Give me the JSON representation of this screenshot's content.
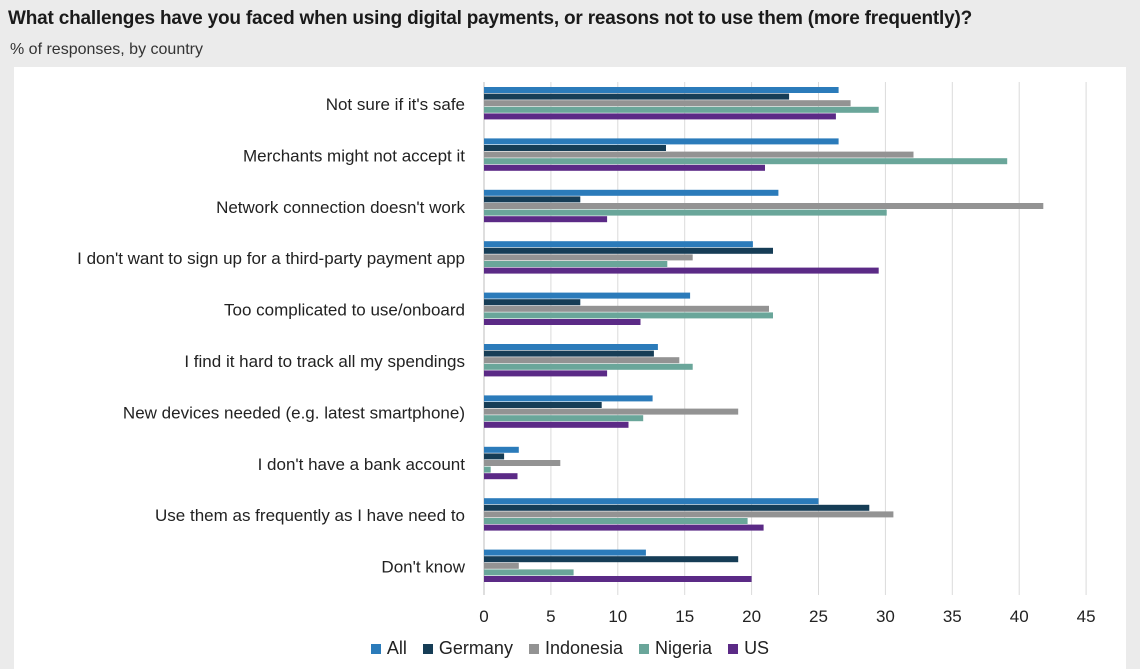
{
  "header": {
    "title": "What challenges have you faced when using digital payments, or reasons not to use them (more frequently)?",
    "subtitle": "% of responses, by country"
  },
  "chart_data": {
    "type": "bar",
    "orientation": "horizontal",
    "title": "What challenges have you faced when using digital payments, or reasons not to use them (more frequently)?",
    "subtitle": "% of responses, by country",
    "xlabel": "",
    "ylabel": "",
    "xlim": [
      0,
      45
    ],
    "xticks": [
      0,
      5,
      10,
      15,
      20,
      25,
      30,
      35,
      40,
      45
    ],
    "grid": "vertical",
    "legend_position": "bottom",
    "categories": [
      "Not sure if it's safe",
      "Merchants might not accept it",
      "Network connection doesn't work",
      "I don't want to sign up for a third-party payment app",
      "Too complicated to use/onboard",
      "I find it hard to track all my spendings",
      "New devices needed (e.g. latest smartphone)",
      "I don't have a bank account",
      "Use them as frequently as I have need to",
      "Don't know"
    ],
    "series": [
      {
        "name": "All",
        "color": "#2b7bba",
        "values": [
          26.5,
          26.5,
          22,
          20.1,
          15.4,
          13,
          12.6,
          2.6,
          25,
          12.1
        ]
      },
      {
        "name": "Germany",
        "color": "#163d56",
        "values": [
          22.8,
          13.6,
          7.2,
          21.6,
          7.2,
          12.7,
          8.8,
          1.5,
          28.8,
          19
        ]
      },
      {
        "name": "Indonesia",
        "color": "#939393",
        "values": [
          27.4,
          32.1,
          41.8,
          15.6,
          21.3,
          14.6,
          19,
          5.7,
          30.6,
          2.6
        ]
      },
      {
        "name": "Nigeria",
        "color": "#6aa69a",
        "values": [
          29.5,
          39.1,
          30.1,
          13.7,
          21.6,
          15.6,
          11.9,
          0.5,
          19.7,
          6.7
        ]
      },
      {
        "name": "US",
        "color": "#5b2a86",
        "values": [
          26.3,
          21,
          9.2,
          29.5,
          11.7,
          9.2,
          10.8,
          2.5,
          20.9,
          20
        ]
      }
    ]
  }
}
